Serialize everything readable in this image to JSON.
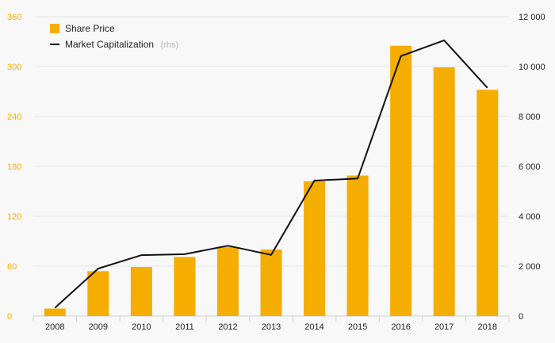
{
  "chart_data": {
    "type": "bar",
    "categories": [
      "2008",
      "2009",
      "2010",
      "2011",
      "2012",
      "2013",
      "2014",
      "2015",
      "2016",
      "2017",
      "2018"
    ],
    "series": [
      {
        "name": "Share Price",
        "type": "bar",
        "axis": "left",
        "color": "#f5ad00",
        "values": [
          9,
          54,
          59,
          71,
          83,
          80,
          162,
          169,
          325,
          299,
          272
        ]
      },
      {
        "name": "Market Capitalization",
        "name_suffix": "(rhs)",
        "type": "line",
        "axis": "right",
        "color": "#111111",
        "values": [
          330,
          1900,
          2440,
          2480,
          2820,
          2450,
          5430,
          5510,
          10420,
          11050,
          9150
        ]
      }
    ],
    "y_left": {
      "range": [
        0,
        360
      ],
      "ticks": [
        "0",
        "60",
        "120",
        "180",
        "240",
        "300",
        "360"
      ],
      "tick_color": "#f5ad00"
    },
    "y_right": {
      "range": [
        0,
        12000
      ],
      "ticks": [
        "0",
        "2 000",
        "4 000",
        "6 000",
        "8 000",
        "10 000",
        "12 000"
      ]
    },
    "grid": true,
    "legend_position": "top-left"
  }
}
